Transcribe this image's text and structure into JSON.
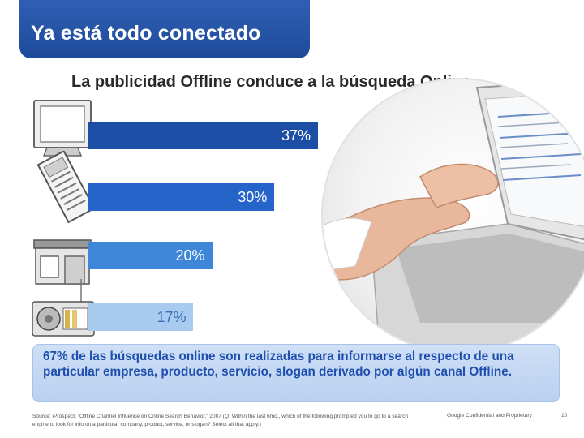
{
  "header": {
    "title": "Ya está todo conectado"
  },
  "subtitle": "La publicidad Offline conduce a la búsqueda Online",
  "chart_data": {
    "type": "bar",
    "orientation": "horizontal",
    "categories": [
      "Televisión",
      "Periódico",
      "Tienda",
      "Radio"
    ],
    "values": [
      37,
      30,
      20,
      17
    ],
    "labels": [
      "37%",
      "30%",
      "20%",
      "17%"
    ],
    "colors": [
      "#1c4ea6",
      "#2565c9",
      "#3d86d8",
      "#a9cbf0"
    ],
    "label_colors": [
      "#ffffff",
      "#ffffff",
      "#ffffff",
      "#3d6fb8"
    ],
    "title": "",
    "xlabel": "",
    "ylabel": "",
    "xlim": [
      0,
      37
    ],
    "grid": false,
    "legend": "none"
  },
  "icons": [
    "tv-icon",
    "newspaper-icon",
    "store-icon",
    "radio-icon"
  ],
  "callout": {
    "text": "67% de las búsquedas online son realizadas para informarse al respecto de una particular empresa, producto, servicio, slogan derivado por algún canal Offline."
  },
  "footer": {
    "source": "Source: iProspect, \"Offline Channel Influence on Online Search Behavior,\" 2007 (Q. Within the last 6mo., which of the following prompted you to go to a search engine to look for info on a particular company, product, service, or slogan? Select all that apply.)",
    "confidential": "Google Confidential and Proprietary",
    "page": "10"
  }
}
